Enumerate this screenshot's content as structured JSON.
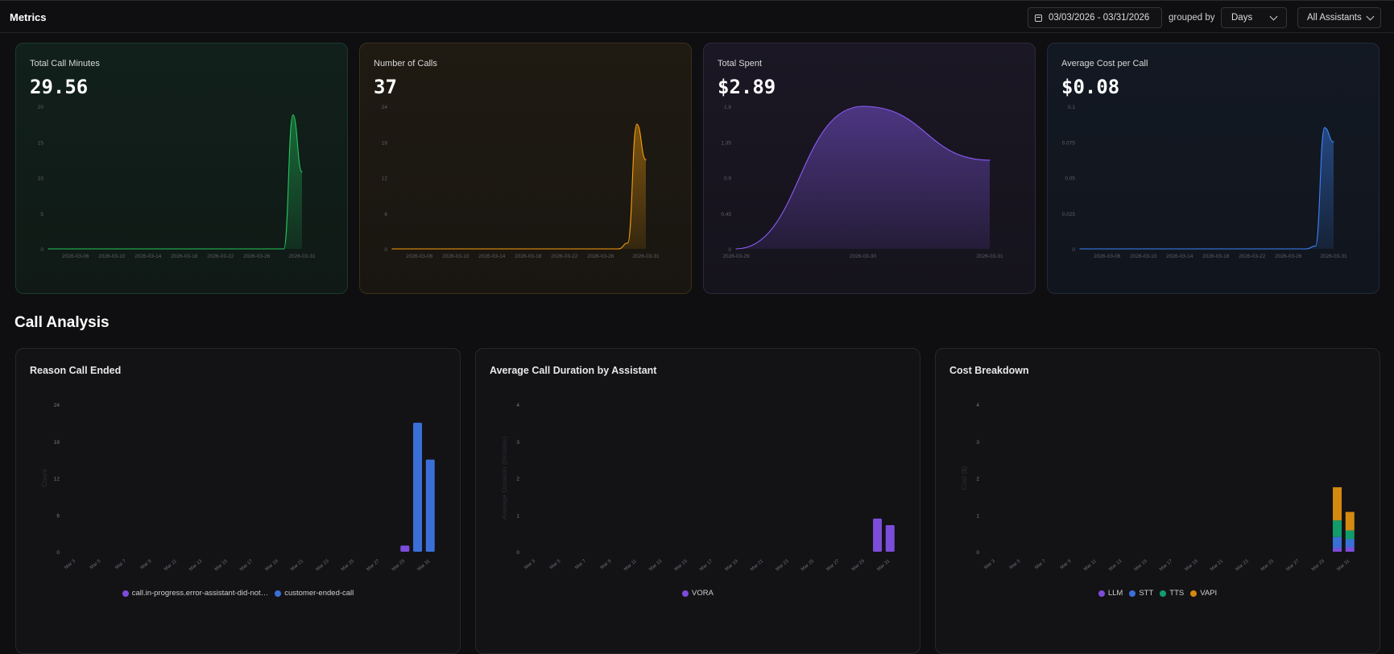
{
  "header": {
    "title": "Metrics",
    "date_range": "03/03/2026 - 03/31/2026",
    "grouped_by_label": "grouped by",
    "group_value": "Days",
    "assistant_filter": "All Assistants"
  },
  "metric_cards": [
    {
      "label": "Total Call Minutes",
      "value": "29.56",
      "color": "#22c55e"
    },
    {
      "label": "Number of Calls",
      "value": "37",
      "color": "#f59e0b"
    },
    {
      "label": "Total Spent",
      "value": "$2.89",
      "color": "#8b5cf6"
    },
    {
      "label": "Average Cost per Call",
      "value": "$0.08",
      "color": "#3b82f6"
    }
  ],
  "section": {
    "title": "Call Analysis"
  },
  "panels": [
    {
      "title": "Reason Call Ended",
      "y_axis_label": "Count"
    },
    {
      "title": "Average Call Duration by Assistant",
      "y_axis_label": "Average Duration (minutes)"
    },
    {
      "title": "Cost Breakdown",
      "y_axis_label": "Cost ($)"
    }
  ],
  "chart_data": [
    {
      "type": "area",
      "title": "Total Call Minutes",
      "color": "#22c55e",
      "ylim": [
        0,
        20
      ],
      "yticks": [
        "0",
        "5",
        "10",
        "15",
        "20"
      ],
      "xticks": [
        "2026-03-06",
        "2026-03-10",
        "2026-03-14",
        "2026-03-18",
        "2026-03-22",
        "2026-03-26",
        "2026-03-31"
      ],
      "x_range": [
        "2026-03-03",
        "2026-03-31"
      ],
      "x": [
        "2026-03-03",
        "2026-03-29",
        "2026-03-30",
        "2026-03-31"
      ],
      "y": [
        0,
        0,
        18.8,
        10.8
      ]
    },
    {
      "type": "area",
      "title": "Number of Calls",
      "color": "#f59e0b",
      "ylim": [
        0,
        24
      ],
      "yticks": [
        "0",
        "6",
        "12",
        "18",
        "24"
      ],
      "xticks": [
        "2026-03-06",
        "2026-03-10",
        "2026-03-14",
        "2026-03-18",
        "2026-03-22",
        "2026-03-26",
        "2026-03-31"
      ],
      "x_range": [
        "2026-03-03",
        "2026-03-31"
      ],
      "x": [
        "2026-03-03",
        "2026-03-28",
        "2026-03-29",
        "2026-03-30",
        "2026-03-31"
      ],
      "y": [
        0,
        0,
        1,
        21,
        15
      ]
    },
    {
      "type": "area",
      "title": "Total Spent",
      "color": "#8b5cf6",
      "ylim": [
        0,
        1.8
      ],
      "yticks": [
        "0",
        "0.45",
        "0.9",
        "1.35",
        "1.8"
      ],
      "xticks": [
        "2026-03-29",
        "2026-03-30",
        "2026-03-31"
      ],
      "x_range": [
        "2026-03-29",
        "2026-03-31"
      ],
      "x": [
        "2026-03-29",
        "2026-03-30",
        "2026-03-31"
      ],
      "y": [
        0,
        1.8,
        1.12
      ]
    },
    {
      "type": "area",
      "title": "Average Cost per Call",
      "color": "#3b82f6",
      "ylim": [
        0,
        0.1
      ],
      "yticks": [
        "0",
        "0.025",
        "0.05",
        "0.075",
        "0.1"
      ],
      "xticks": [
        "2026-03-06",
        "2026-03-10",
        "2026-03-14",
        "2026-03-18",
        "2026-03-22",
        "2026-03-26",
        "2026-03-31"
      ],
      "x_range": [
        "2026-03-03",
        "2026-03-31"
      ],
      "x": [
        "2026-03-03",
        "2026-03-28",
        "2026-03-29",
        "2026-03-30",
        "2026-03-31"
      ],
      "y": [
        0,
        0,
        0.002,
        0.085,
        0.075
      ]
    },
    {
      "type": "bar",
      "stacked": false,
      "title": "Reason Call Ended",
      "ylabel": "Count",
      "ylim": [
        0,
        24
      ],
      "yticks": [
        "0",
        "6",
        "12",
        "18",
        "24"
      ],
      "categories": [
        "Mar 3",
        "Mar 5",
        "Mar 7",
        "Mar 9",
        "Mar 11",
        "Mar 13",
        "Mar 15",
        "Mar 17",
        "Mar 19",
        "Mar 21",
        "Mar 23",
        "Mar 25",
        "Mar 27",
        "Mar 29",
        "Mar 31"
      ],
      "bars": [
        {
          "x": "2026-03-29",
          "series": "call.in-progress.error-assistant-did-not…",
          "value": 1
        },
        {
          "x": "2026-03-30",
          "series": "customer-ended-call",
          "value": 21
        },
        {
          "x": "2026-03-31",
          "series": "customer-ended-call",
          "value": 15
        }
      ],
      "series": [
        {
          "name": "call.in-progress.error-assistant-did-not…",
          "color": "#7c4ddb"
        },
        {
          "name": "customer-ended-call",
          "color": "#3b6fd8"
        }
      ]
    },
    {
      "type": "bar",
      "stacked": false,
      "title": "Average Call Duration by Assistant",
      "ylabel": "Average Duration (minutes)",
      "ylim": [
        0,
        4
      ],
      "yticks": [
        "0",
        "1",
        "2",
        "3",
        "4"
      ],
      "categories": [
        "Mar 3",
        "Mar 5",
        "Mar 7",
        "Mar 9",
        "Mar 11",
        "Mar 13",
        "Mar 15",
        "Mar 17",
        "Mar 19",
        "Mar 21",
        "Mar 23",
        "Mar 25",
        "Mar 27",
        "Mar 29",
        "Mar 31"
      ],
      "bars": [
        {
          "x": "2026-03-30",
          "series": "VORA",
          "value": 0.9
        },
        {
          "x": "2026-03-31",
          "series": "VORA",
          "value": 0.72
        }
      ],
      "series": [
        {
          "name": "VORA",
          "color": "#7c4ddb"
        }
      ]
    },
    {
      "type": "bar",
      "stacked": true,
      "title": "Cost Breakdown",
      "ylabel": "Cost ($)",
      "ylim": [
        0,
        4
      ],
      "yticks": [
        "0",
        "1",
        "2",
        "3",
        "4"
      ],
      "categories": [
        "Mar 3",
        "Mar 5",
        "Mar 7",
        "Mar 9",
        "Mar 11",
        "Mar 13",
        "Mar 15",
        "Mar 17",
        "Mar 19",
        "Mar 21",
        "Mar 23",
        "Mar 25",
        "Mar 27",
        "Mar 29",
        "Mar 31"
      ],
      "stacks": [
        {
          "x": "2026-03-30",
          "values": [
            0.1,
            0.3,
            0.45,
            0.9
          ]
        },
        {
          "x": "2026-03-31",
          "values": [
            0.12,
            0.22,
            0.24,
            0.5
          ]
        }
      ],
      "series": [
        {
          "name": "LLM",
          "color": "#7c4ddb"
        },
        {
          "name": "STT",
          "color": "#3b6fd8"
        },
        {
          "name": "TTS",
          "color": "#129c6b"
        },
        {
          "name": "VAPI",
          "color": "#d4890f"
        }
      ]
    }
  ]
}
